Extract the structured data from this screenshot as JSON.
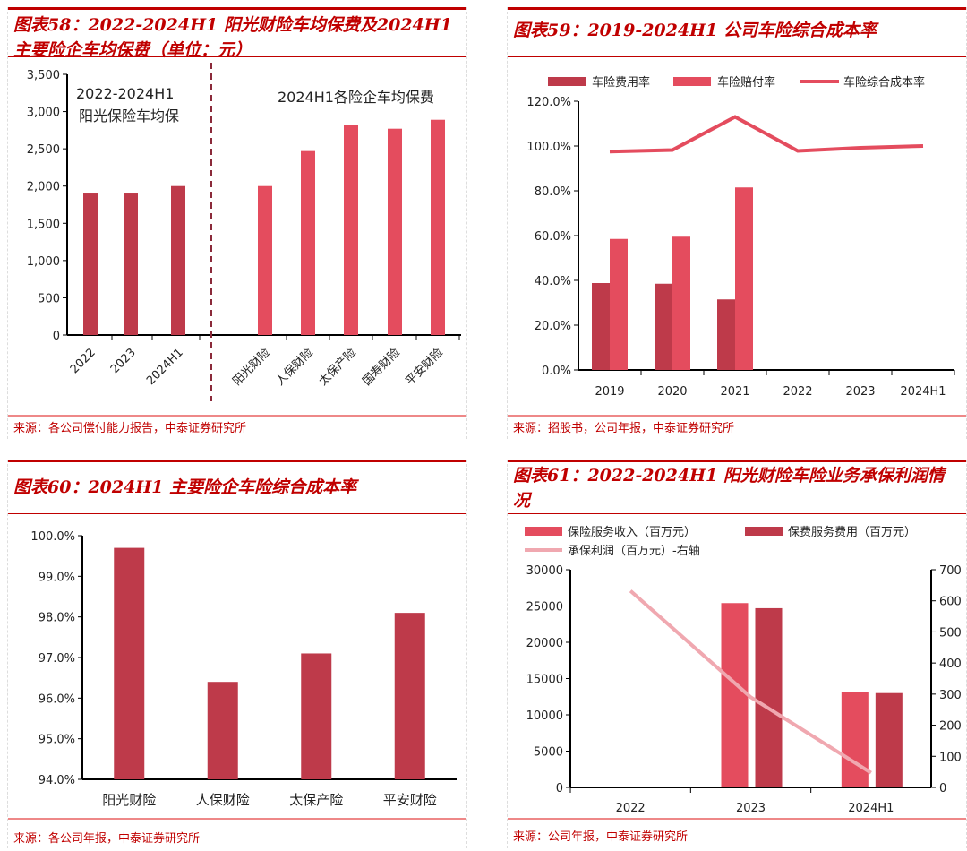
{
  "colors": {
    "dark": "#be3a4a",
    "light": "#e44c5e",
    "pink": "#f0a8b0",
    "title": "#c00000"
  },
  "panels": [
    {
      "title": "图表58：2022-2024H1 阳光财险车均保费及2024H1主要险企车均保费（单位：元）",
      "source": "来源：各公司偿付能力报告，中泰证券研究所"
    },
    {
      "title": "图表59：2019-2024H1 公司车险综合成本率",
      "source": "来源：招股书，公司年报，中泰证券研究所"
    },
    {
      "title": "图表60：2024H1 主要险企车险综合成本率",
      "source": "来源：各公司年报，中泰证券研究所"
    },
    {
      "title": "图表61：2022-2024H1 阳光财险车险业务承保利润情况",
      "source": "来源：公司年报，中泰证券研究所"
    }
  ],
  "chart_data": [
    {
      "type": "bar",
      "ylim": [
        0,
        3500
      ],
      "yticks": [
        "0",
        "500",
        "1,000",
        "1,500",
        "2,000",
        "2,500",
        "3,000",
        "3,500"
      ],
      "annotations": [
        "2022-2024H1阳光保险车均保",
        "2024H1各险企车均保费"
      ],
      "groups": [
        {
          "categories": [
            "2022",
            "2023",
            "2024H1"
          ],
          "values": [
            1900,
            1900,
            2000
          ]
        },
        {
          "categories": [
            "阳光财险",
            "人保财险",
            "太保产险",
            "国寿财险",
            "平安财险"
          ],
          "values": [
            2000,
            2470,
            2820,
            2770,
            2890
          ]
        }
      ]
    },
    {
      "type": "bar+line",
      "ylim": [
        0,
        120
      ],
      "yticks": [
        "0.0%",
        "20.0%",
        "40.0%",
        "60.0%",
        "80.0%",
        "100.0%",
        "120.0%"
      ],
      "categories": [
        "2019",
        "2020",
        "2021",
        "2022",
        "2023",
        "2024H1"
      ],
      "legend": "top",
      "series": [
        {
          "name": "车险费用率",
          "type": "bar",
          "values": [
            38.8,
            38.5,
            31.5,
            null,
            null,
            null
          ]
        },
        {
          "name": "车险赔付率",
          "type": "bar",
          "values": [
            58.5,
            59.5,
            81.5,
            null,
            null,
            null
          ]
        },
        {
          "name": "车险综合成本率",
          "type": "line",
          "values": [
            97.5,
            98.2,
            113.0,
            97.8,
            99.2,
            100.0
          ]
        }
      ]
    },
    {
      "type": "bar",
      "ylim": [
        94,
        100
      ],
      "yticks": [
        "94.0%",
        "95.0%",
        "96.0%",
        "97.0%",
        "98.0%",
        "99.0%",
        "100.0%"
      ],
      "categories": [
        "阳光财险",
        "人保财险",
        "太保产险",
        "平安财险"
      ],
      "values": [
        99.7,
        96.4,
        97.1,
        98.1
      ]
    },
    {
      "type": "bar+line",
      "ylim": [
        0,
        30000
      ],
      "y2lim": [
        0,
        700
      ],
      "yticks": [
        "0",
        "5000",
        "10000",
        "15000",
        "20000",
        "25000",
        "30000"
      ],
      "y2ticks": [
        "0",
        "100",
        "200",
        "300",
        "400",
        "500",
        "600",
        "700"
      ],
      "categories": [
        "2022",
        "2023",
        "2024H1"
      ],
      "legend": "top",
      "series": [
        {
          "name": "保险服务收入（百万元）",
          "type": "bar",
          "values": [
            null,
            25400,
            13200
          ]
        },
        {
          "name": "保费服务费用（百万元）",
          "type": "bar",
          "values": [
            null,
            24700,
            13000
          ]
        },
        {
          "name": "承保利润（百万元）-右轴",
          "type": "line",
          "axis": "right",
          "values": [
            632,
            290,
            47
          ]
        }
      ]
    }
  ]
}
